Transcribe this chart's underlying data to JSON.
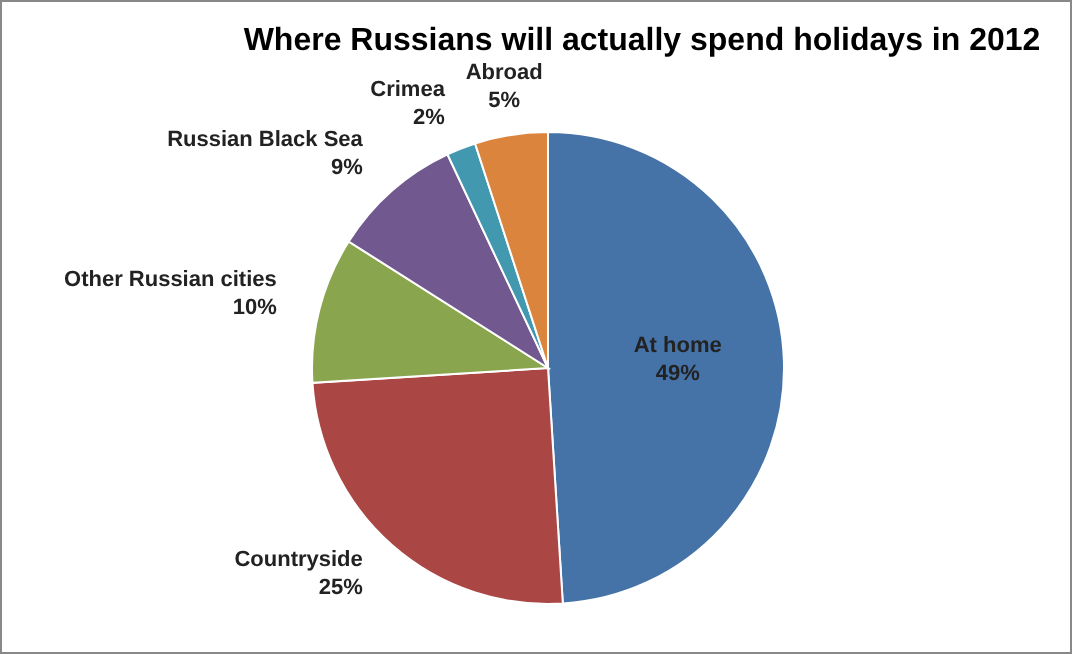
{
  "chart_data": {
    "type": "pie",
    "title": "Where Russians will actually spend holidays in 2012",
    "categories": [
      "At home",
      "Countryside",
      "Other Russian cities",
      "Russian Black Sea",
      "Crimea",
      "Abroad"
    ],
    "values": [
      49,
      25,
      10,
      9,
      2,
      5
    ],
    "value_labels": [
      "49%",
      "25%",
      "10%",
      "9%",
      "2%",
      "5%"
    ],
    "colors": [
      "#4572a7",
      "#aa4643",
      "#89a54e",
      "#71588f",
      "#4198af",
      "#db843d"
    ],
    "legend": false
  }
}
